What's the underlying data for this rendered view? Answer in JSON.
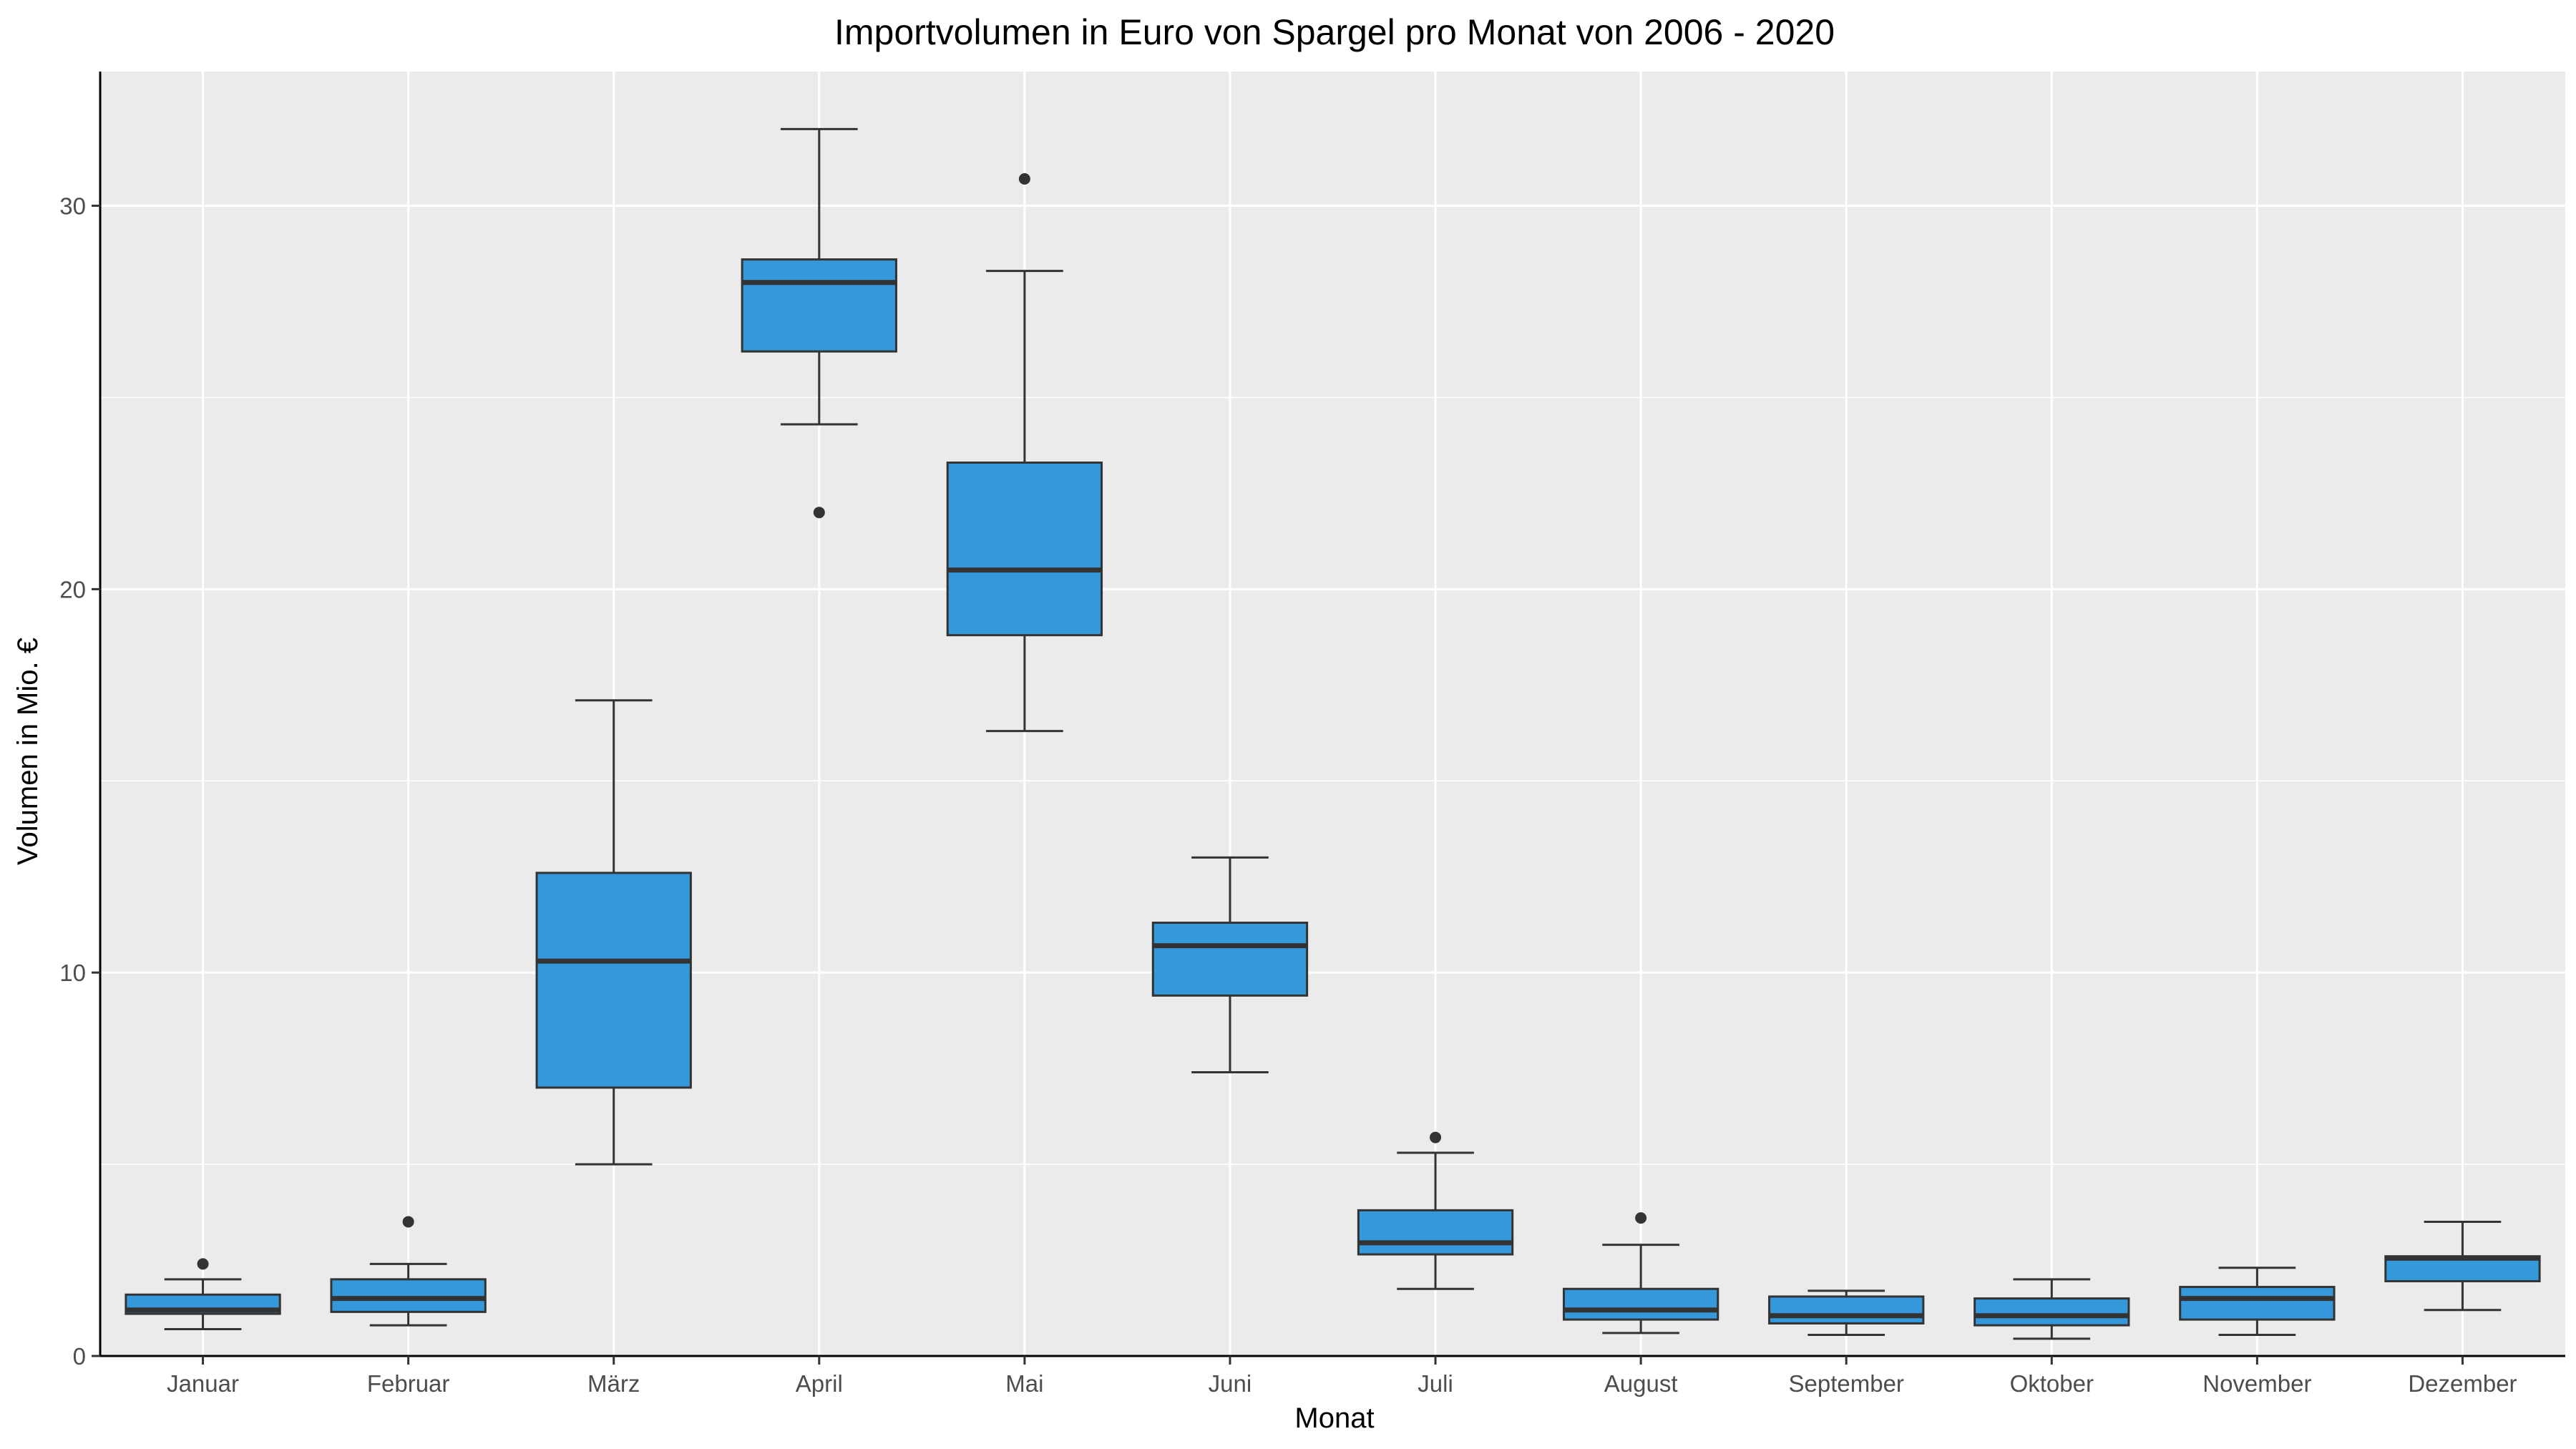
{
  "chart_data": {
    "type": "boxplot",
    "title": "Importvolumen in Euro von Spargel pro Monat von 2006 - 2020",
    "xlabel": "Monat",
    "ylabel": "Volumen in Mio. €",
    "ylim": [
      0,
      33.5
    ],
    "yticks": [
      0,
      10,
      20,
      30
    ],
    "grid": true,
    "legend": "none",
    "colors": {
      "panel": "#ebebeb",
      "grid": "#ffffff",
      "box_fill": "#3498db",
      "box_line": "#333333",
      "outlier": "#333333",
      "axis_line": "#000000"
    },
    "categories": [
      "Januar",
      "Februar",
      "März",
      "April",
      "Mai",
      "Juni",
      "Juli",
      "August",
      "September",
      "Oktober",
      "November",
      "Dezember"
    ],
    "boxes": [
      {
        "category": "Januar",
        "min": 0.7,
        "q1": 1.1,
        "median": 1.2,
        "q3": 1.6,
        "max": 2.0,
        "outliers": [
          2.4
        ]
      },
      {
        "category": "Februar",
        "min": 0.8,
        "q1": 1.15,
        "median": 1.5,
        "q3": 2.0,
        "max": 2.4,
        "outliers": [
          3.5
        ]
      },
      {
        "category": "März",
        "min": 5.0,
        "q1": 7.0,
        "median": 10.3,
        "q3": 12.6,
        "max": 17.1,
        "outliers": []
      },
      {
        "category": "April",
        "min": 24.3,
        "q1": 26.2,
        "median": 28.0,
        "q3": 28.6,
        "max": 32.0,
        "outliers": [
          22.0
        ]
      },
      {
        "category": "Mai",
        "min": 16.3,
        "q1": 18.8,
        "median": 20.5,
        "q3": 23.3,
        "max": 28.3,
        "outliers": [
          30.7
        ]
      },
      {
        "category": "Juni",
        "min": 7.4,
        "q1": 9.4,
        "median": 10.7,
        "q3": 11.3,
        "max": 13.0,
        "outliers": []
      },
      {
        "category": "Juli",
        "min": 1.75,
        "q1": 2.65,
        "median": 2.95,
        "q3": 3.8,
        "max": 5.3,
        "outliers": [
          5.7
        ]
      },
      {
        "category": "August",
        "min": 0.6,
        "q1": 0.95,
        "median": 1.2,
        "q3": 1.75,
        "max": 2.9,
        "outliers": [
          3.6
        ]
      },
      {
        "category": "September",
        "min": 0.55,
        "q1": 0.85,
        "median": 1.05,
        "q3": 1.55,
        "max": 1.7,
        "outliers": []
      },
      {
        "category": "Oktober",
        "min": 0.45,
        "q1": 0.8,
        "median": 1.05,
        "q3": 1.5,
        "max": 2.0,
        "outliers": []
      },
      {
        "category": "November",
        "min": 0.55,
        "q1": 0.95,
        "median": 1.5,
        "q3": 1.8,
        "max": 2.3,
        "outliers": []
      },
      {
        "category": "Dezember",
        "min": 1.2,
        "q1": 1.95,
        "median": 2.55,
        "q3": 2.6,
        "max": 3.5,
        "outliers": []
      }
    ]
  }
}
